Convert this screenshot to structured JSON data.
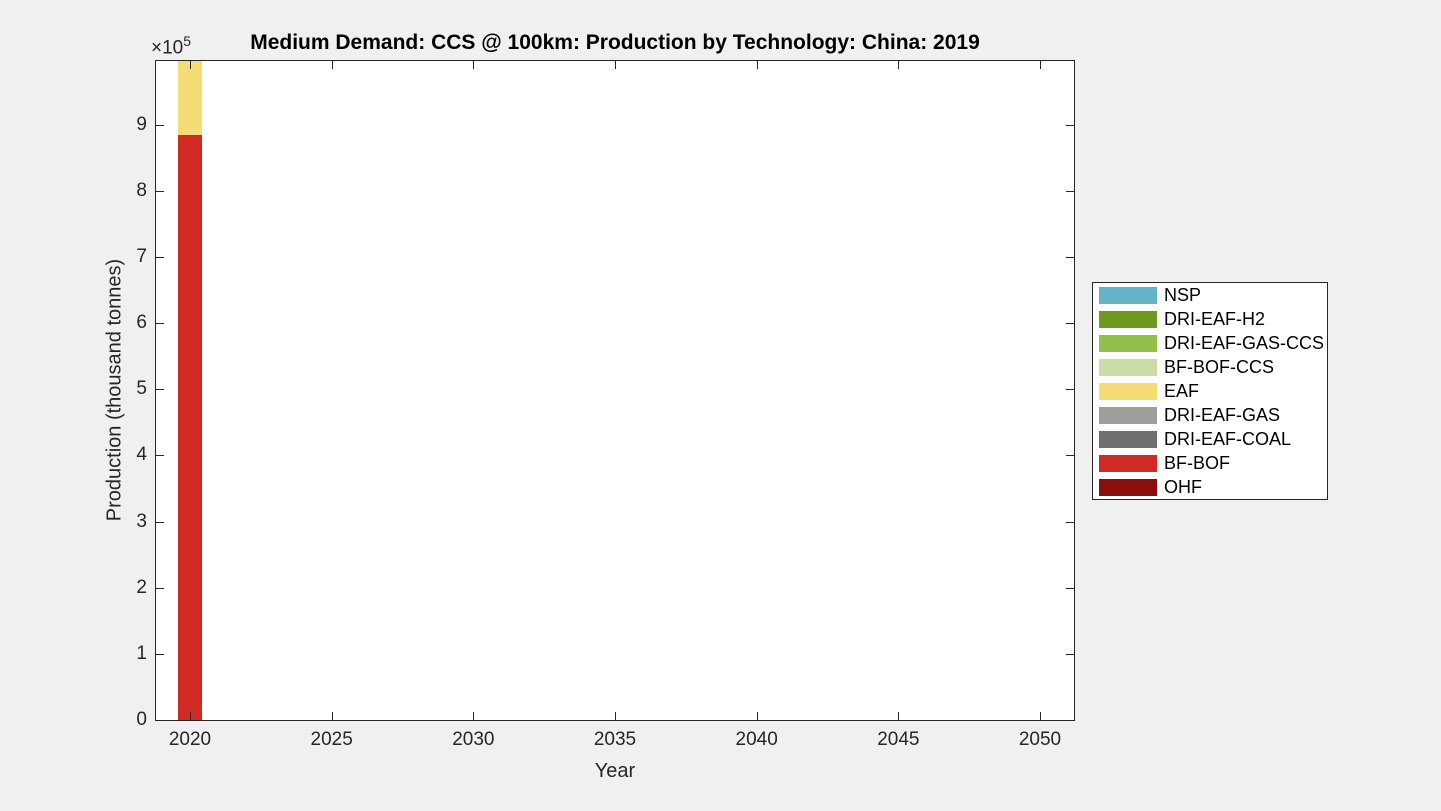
{
  "figure": {
    "background": "#F0F0F0"
  },
  "chart_data": {
    "type": "bar",
    "stacked": true,
    "title": "Medium Demand: CCS @ 100km: Production by Technology: China: 2019",
    "xlabel": "Year",
    "ylabel": "Production (thousand tonnes)",
    "y_offset": {
      "base": "×10",
      "exp": "5"
    },
    "units": "thousand tonnes",
    "categories": [
      2020
    ],
    "series": [
      {
        "name": "NSP",
        "color": "#63B3C9",
        "values": [
          0
        ]
      },
      {
        "name": "DRI-EAF-H2",
        "color": "#6B9A1E",
        "values": [
          0
        ]
      },
      {
        "name": "DRI-EAF-GAS-CCS",
        "color": "#92C14A",
        "values": [
          0
        ]
      },
      {
        "name": "BF-BOF-CCS",
        "color": "#C9DDA4",
        "values": [
          0
        ]
      },
      {
        "name": "EAF",
        "color": "#F5DC74",
        "values": [
          112000
        ]
      },
      {
        "name": "DRI-EAF-GAS",
        "color": "#9D9D9B",
        "values": [
          0
        ]
      },
      {
        "name": "DRI-EAF-COAL",
        "color": "#6E6E6C",
        "values": [
          0
        ]
      },
      {
        "name": "BF-BOF",
        "color": "#D02A24",
        "values": [
          884000
        ]
      },
      {
        "name": "OHF",
        "color": "#8A0E0E",
        "values": [
          0
        ]
      }
    ],
    "xlim": [
      2018.8,
      2051.2
    ],
    "ylim": [
      0,
      996000
    ],
    "xticks": [
      2020,
      2025,
      2030,
      2035,
      2040,
      2045,
      2050
    ],
    "yticks": [
      0,
      100000,
      200000,
      300000,
      400000,
      500000,
      600000,
      700000,
      800000,
      900000
    ],
    "ytick_labels": [
      "0",
      "1",
      "2",
      "3",
      "4",
      "5",
      "6",
      "7",
      "8",
      "9"
    ],
    "grid": false,
    "legend_position": "outside-right",
    "bar_width_years": 0.85,
    "axis_color": "#262626",
    "plot_background": "#FFFFFF"
  }
}
